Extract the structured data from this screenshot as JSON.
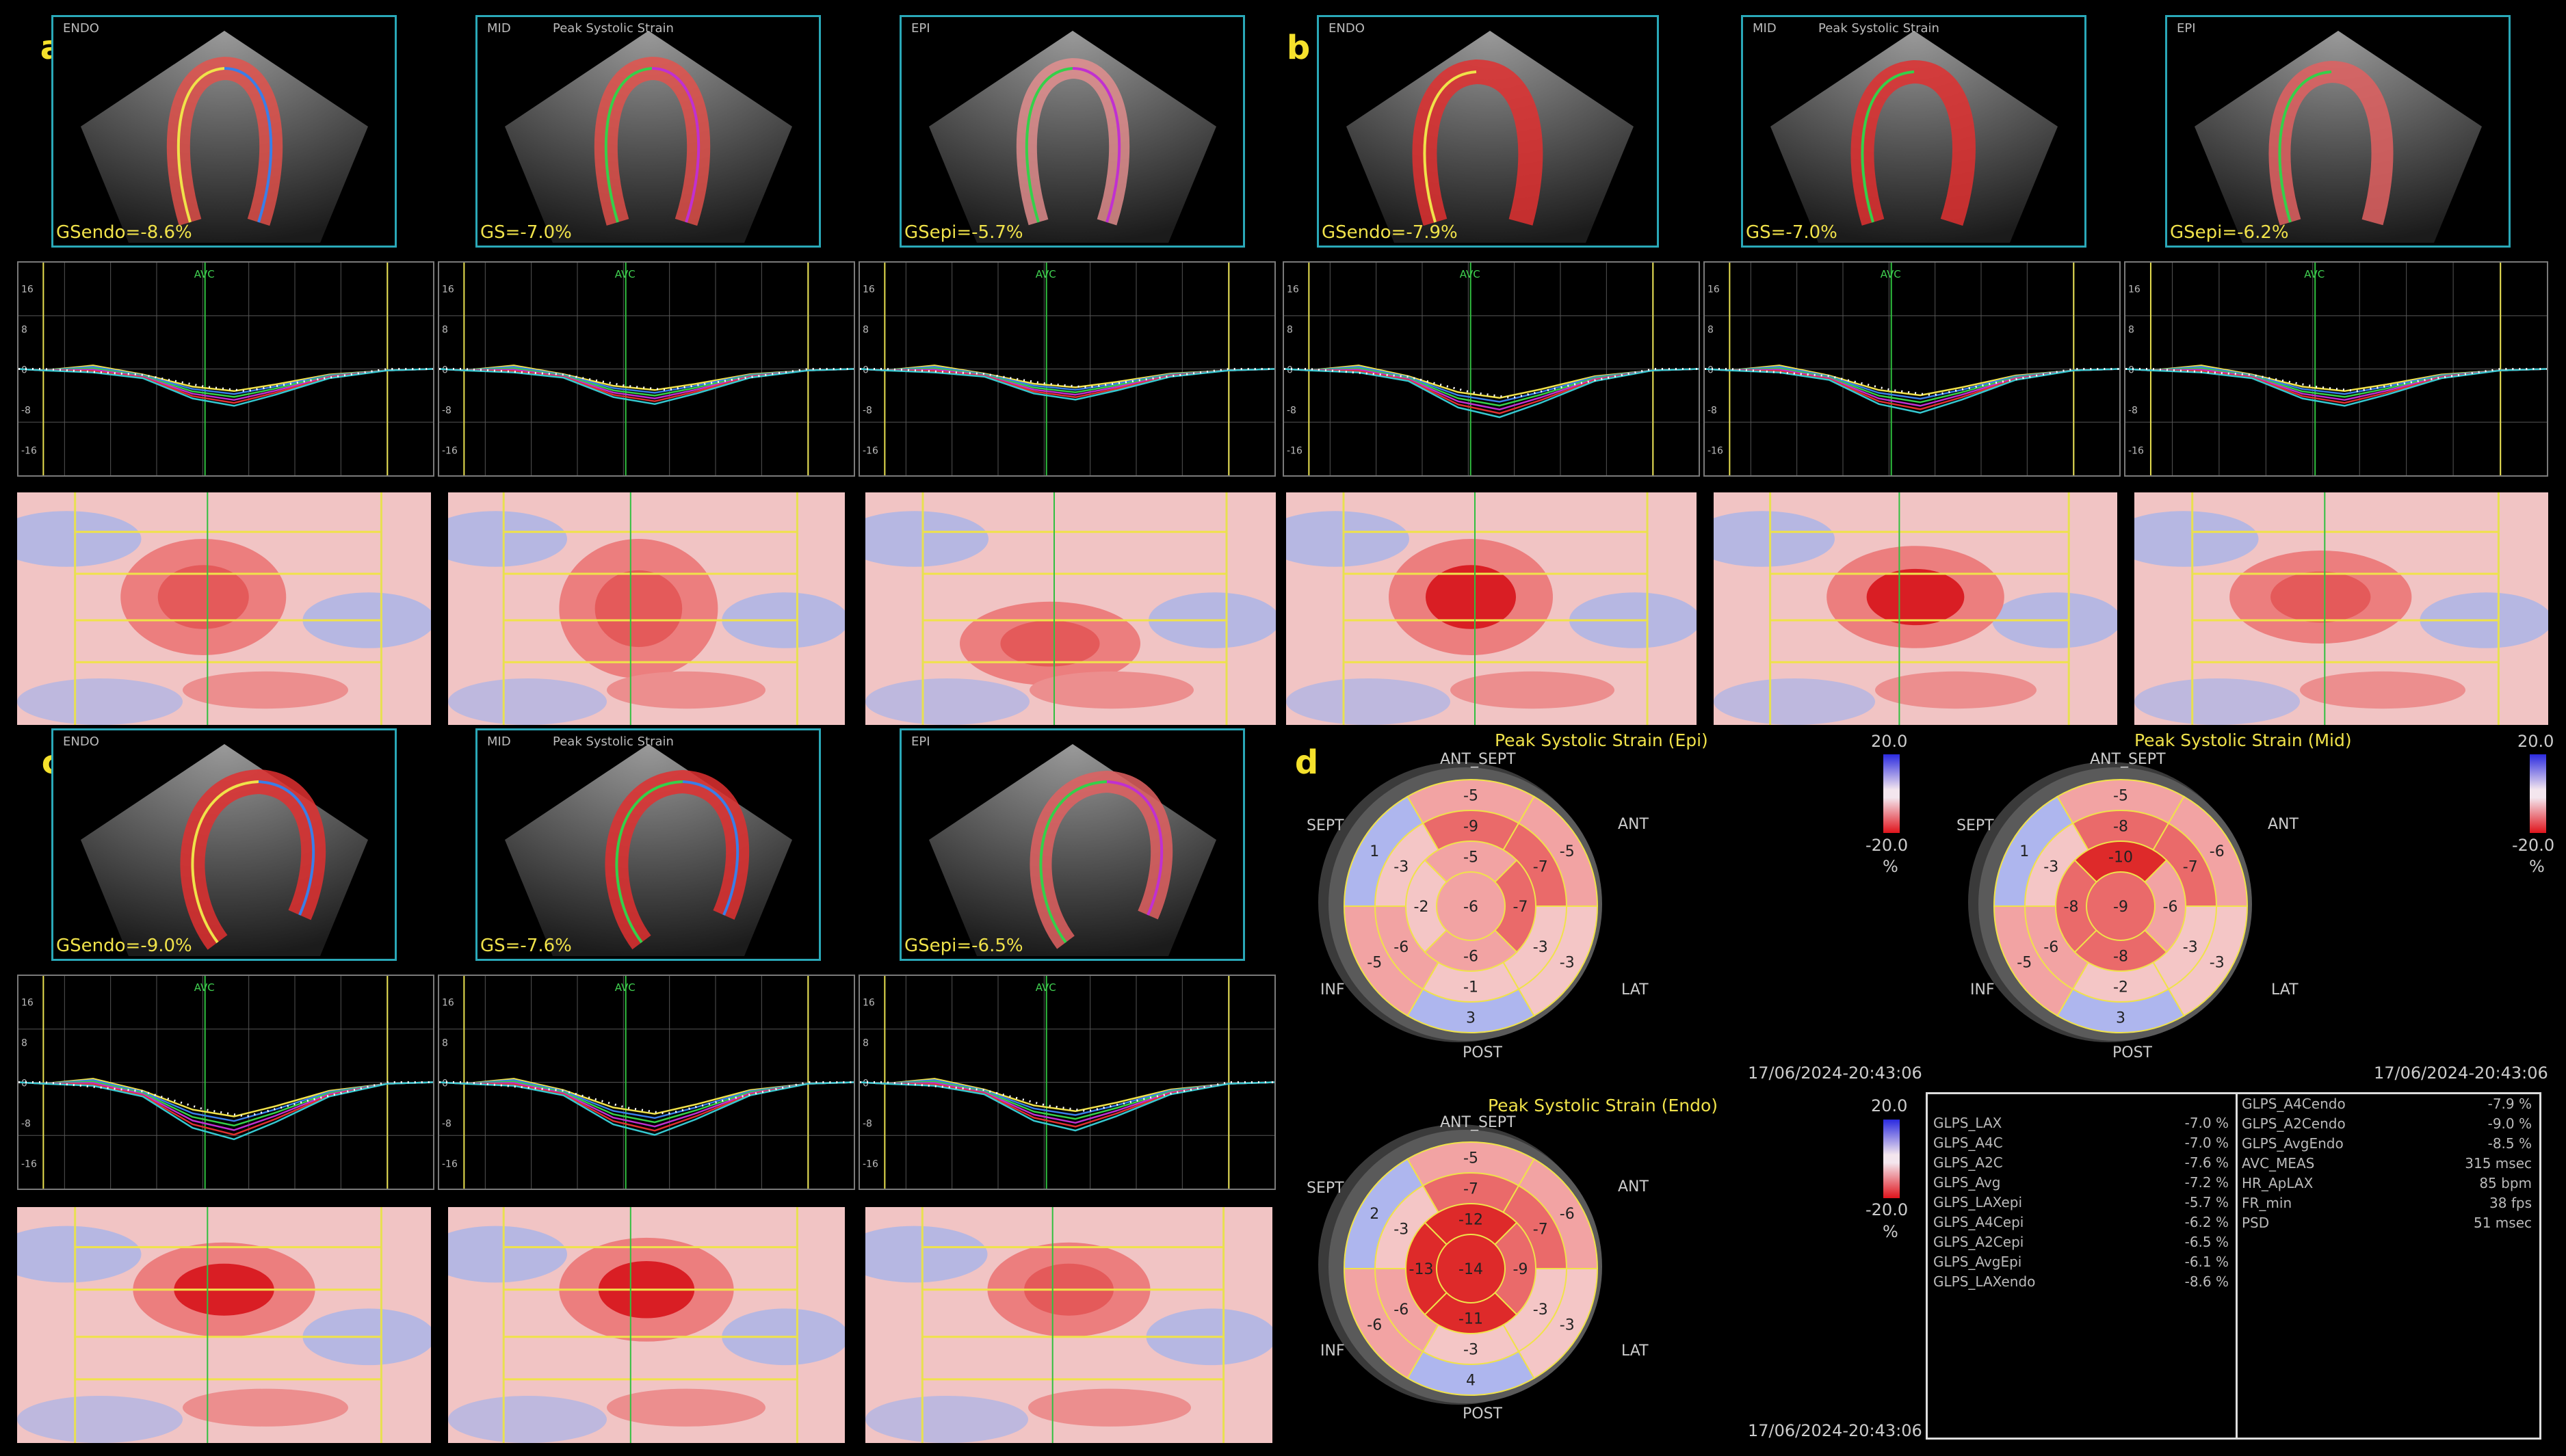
{
  "panels": {
    "a": {
      "label": "a",
      "views": [
        {
          "layer": "ENDO",
          "title": "",
          "gs": "GSendo=-8.6%"
        },
        {
          "layer": "MID",
          "title": "Peak Systolic Strain",
          "gs": "GS=-7.0%"
        },
        {
          "layer": "EPI",
          "title": "",
          "gs": "GSepi=-5.7%"
        }
      ]
    },
    "b": {
      "label": "b",
      "views": [
        {
          "layer": "ENDO",
          "title": "",
          "gs": "GSendo=-7.9%"
        },
        {
          "layer": "MID",
          "title": "Peak Systolic Strain",
          "gs": "GS=-7.0%"
        },
        {
          "layer": "EPI",
          "title": "",
          "gs": "GSepi=-6.2%"
        }
      ]
    },
    "c": {
      "label": "c",
      "views": [
        {
          "layer": "ENDO",
          "title": "",
          "gs": "GSendo=-9.0%"
        },
        {
          "layer": "MID",
          "title": "Peak Systolic Strain",
          "gs": "GS=-7.6%"
        },
        {
          "layer": "EPI",
          "title": "",
          "gs": "GSepi=-6.5%"
        }
      ]
    },
    "d": {
      "label": "d"
    }
  },
  "curve_axis": {
    "ticks": [
      "16",
      "8",
      "0",
      "-8",
      "-16"
    ],
    "marker": "AVC"
  },
  "bullseyes": {
    "epi": {
      "title": "Peak Systolic Strain (Epi)",
      "segments": [
        "-5",
        "-5",
        "-3",
        "3",
        "-5",
        "1",
        "-9",
        "-7",
        "-3",
        "-1",
        "-6",
        "-3",
        "-5",
        "-7",
        "-6",
        "-2",
        "-6"
      ],
      "directions": {
        "ant_sept": "ANT_SEPT",
        "sept": "SEPT",
        "ant": "ANT",
        "inf": "INF",
        "lat": "LAT",
        "post": "POST"
      },
      "scale": {
        "max": "20.0",
        "min": "-20.0",
        "unit": "%"
      },
      "timestamp": "17/06/2024-20:43:06"
    },
    "mid": {
      "title": "Peak Systolic Strain (Mid)",
      "segments": [
        "-5",
        "-6",
        "-3",
        "3",
        "-5",
        "1",
        "-8",
        "-7",
        "-3",
        "-2",
        "-6",
        "-3",
        "-10",
        "-6",
        "-8",
        "-8",
        "-9"
      ],
      "directions": {
        "ant_sept": "ANT_SEPT",
        "sept": "SEPT",
        "ant": "ANT",
        "inf": "INF",
        "lat": "LAT",
        "post": "POST"
      },
      "scale": {
        "max": "20.0",
        "min": "-20.0",
        "unit": "%"
      },
      "timestamp": "17/06/2024-20:43:06"
    },
    "endo": {
      "title": "Peak Systolic Strain (Endo)",
      "segments": [
        "-5",
        "-6",
        "-3",
        "4",
        "-6",
        "2",
        "-7",
        "-7",
        "-3",
        "-3",
        "-6",
        "-3",
        "-12",
        "-9",
        "-11",
        "-13",
        "-14"
      ],
      "directions": {
        "ant_sept": "ANT_SEPT",
        "sept": "SEPT",
        "ant": "ANT",
        "inf": "INF",
        "lat": "LAT",
        "post": "POST"
      },
      "scale": {
        "max": "20.0",
        "min": "-20.0",
        "unit": "%"
      },
      "timestamp": "17/06/2024-20:43:06"
    }
  },
  "measurements": {
    "left": [
      {
        "name": "GLPS_LAX",
        "value": "-7.0 %"
      },
      {
        "name": "GLPS_A4C",
        "value": "-7.0 %"
      },
      {
        "name": "GLPS_A2C",
        "value": "-7.6 %"
      },
      {
        "name": "GLPS_Avg",
        "value": "-7.2 %"
      },
      {
        "name": "GLPS_LAXepi",
        "value": "-5.7 %"
      },
      {
        "name": "GLPS_A4Cepi",
        "value": "-6.2 %"
      },
      {
        "name": "GLPS_A2Cepi",
        "value": "-6.5 %"
      },
      {
        "name": "GLPS_AvgEpi",
        "value": "-6.1 %"
      },
      {
        "name": "GLPS_LAXendo",
        "value": "-8.6 %"
      }
    ],
    "right": [
      {
        "name": "GLPS_A4Cendo",
        "value": "-7.9 %"
      },
      {
        "name": "GLPS_A2Cendo",
        "value": "-9.0 %"
      },
      {
        "name": "GLPS_AvgEndo",
        "value": "-8.5 %"
      },
      {
        "name": "AVC_MEAS",
        "value": "315 msec"
      },
      {
        "name": "HR_ApLAX",
        "value": "85 bpm"
      },
      {
        "name": "FR_min",
        "value": "38 fps"
      },
      {
        "name": "PSD",
        "value": "51 msec"
      }
    ]
  }
}
